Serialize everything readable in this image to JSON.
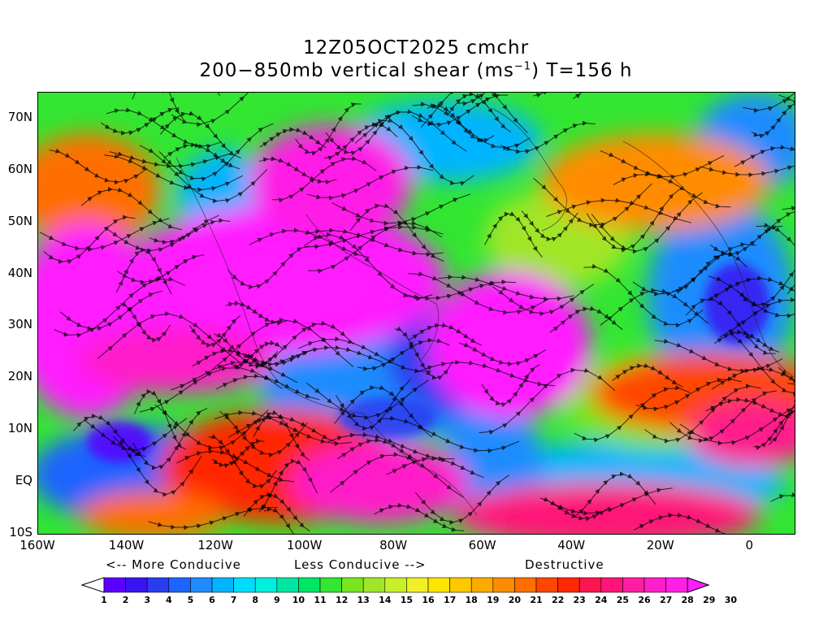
{
  "title": {
    "line1": "12Z05OCT2025 cmchr",
    "line2_pre": "200−850mb vertical shear (ms",
    "line2_sup": "−1",
    "line2_post": ") T=156 h"
  },
  "map": {
    "lon_range": [
      -160,
      10
    ],
    "lat_range": [
      -10,
      75
    ],
    "field": "vertical wind shear",
    "units": "ms-1",
    "streamlines": true
  },
  "axes": {
    "y_labels": [
      {
        "label": "70N",
        "lat": 70
      },
      {
        "label": "60N",
        "lat": 60
      },
      {
        "label": "50N",
        "lat": 50
      },
      {
        "label": "40N",
        "lat": 40
      },
      {
        "label": "30N",
        "lat": 30
      },
      {
        "label": "20N",
        "lat": 20
      },
      {
        "label": "10N",
        "lat": 10
      },
      {
        "label": "EQ",
        "lat": 0
      },
      {
        "label": "10S",
        "lat": -10
      }
    ],
    "x_labels": [
      {
        "label": "160W",
        "lon": -160
      },
      {
        "label": "140W",
        "lon": -140
      },
      {
        "label": "120W",
        "lon": -120
      },
      {
        "label": "100W",
        "lon": -100
      },
      {
        "label": "80W",
        "lon": -80
      },
      {
        "label": "60W",
        "lon": -60
      },
      {
        "label": "40W",
        "lon": -40
      },
      {
        "label": "20W",
        "lon": -20
      },
      {
        "label": "0",
        "lon": 0
      }
    ]
  },
  "legend": {
    "more_conducive": "<-- More Conducive",
    "less_conducive": "Less Conducive -->",
    "destructive": "Destructive",
    "levels": [
      "1",
      "2",
      "3",
      "4",
      "5",
      "6",
      "7",
      "8",
      "9",
      "10",
      "11",
      "12",
      "13",
      "14",
      "15",
      "16",
      "17",
      "18",
      "19",
      "20",
      "21",
      "22",
      "23",
      "24",
      "25",
      "26",
      "27",
      "28",
      "29",
      "30"
    ],
    "colors": [
      "#ffffff",
      "#5a00ff",
      "#3a14f0",
      "#2a3cf0",
      "#1e64ff",
      "#1e8cff",
      "#00b4ff",
      "#00dcff",
      "#00f0dc",
      "#00e6a0",
      "#00e664",
      "#32e632",
      "#78e61e",
      "#a0e628",
      "#c8f028",
      "#f0f028",
      "#ffe600",
      "#ffc800",
      "#ffaa00",
      "#ff8c00",
      "#ff6e00",
      "#ff4600",
      "#ff2800",
      "#ff1450",
      "#ff1478",
      "#ff1ea0",
      "#ff1ec8",
      "#ff1ee6",
      "#ff1eff"
    ]
  }
}
